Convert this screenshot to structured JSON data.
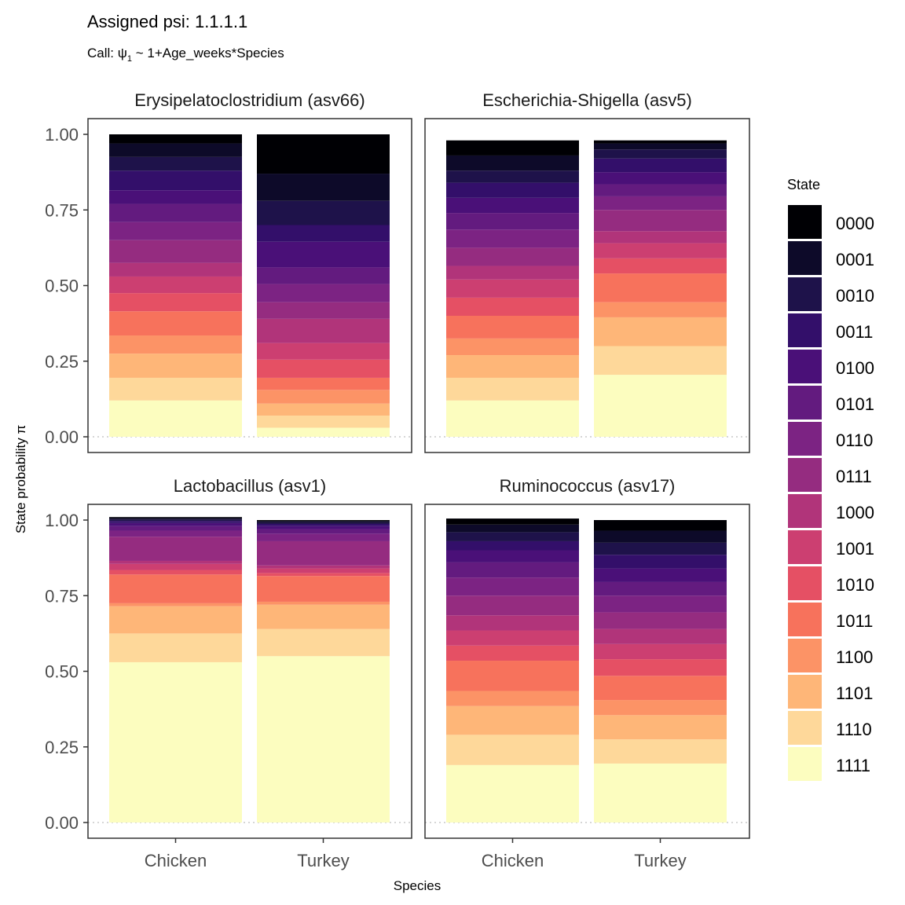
{
  "title": "Assigned psi: 1.1.1.1",
  "subtitle_prefix": "Call: ",
  "subtitle_psi": "ψ",
  "subtitle_psi_sub": "1",
  "subtitle_formula": " ~ 1+Age_weeks*Species",
  "colors": {
    "0000": "#000004",
    "0001": "#0d0a29",
    "0010": "#1e124a",
    "0011": "#330f6a",
    "0100": "#4a1078",
    "0101": "#631b7f",
    "0110": "#7c2383",
    "0111": "#952c80",
    "1000": "#b1347a",
    "1001": "#cc3f71",
    "1010": "#e55064",
    "1011": "#f7725c",
    "1100": "#fc9366",
    "1101": "#feb678",
    "1110": "#fed89a",
    "1111": "#fcfdbf"
  },
  "chart_data": {
    "type": "bar",
    "stacked": true,
    "facets": [
      "Erysipelatoclostridium (asv66)",
      "Escherichia-Shigella (asv5)",
      "Lactobacillus (asv1)",
      "Ruminococcus (asv17)"
    ],
    "categories": [
      "Chicken",
      "Turkey"
    ],
    "xlabel": "Species",
    "ylabel": "State probability π",
    "ylim": [
      0,
      1
    ],
    "yticks": [
      "0.00",
      "0.25",
      "0.50",
      "0.75",
      "1.00"
    ],
    "legend_title": "State",
    "legend_position": "right",
    "states": [
      "0000",
      "0001",
      "0010",
      "0011",
      "0100",
      "0101",
      "0110",
      "0111",
      "1000",
      "1001",
      "1010",
      "1011",
      "1100",
      "1101",
      "1110",
      "1111"
    ],
    "series": [
      {
        "facet": "Erysipelatoclostridium (asv66)",
        "category": "Chicken",
        "values": {
          "0000": 0.03,
          "0001": 0.045,
          "0010": 0.045,
          "0011": 0.065,
          "0100": 0.045,
          "0101": 0.06,
          "0110": 0.06,
          "0111": 0.075,
          "1000": 0.045,
          "1001": 0.055,
          "1010": 0.06,
          "1011": 0.08,
          "1100": 0.06,
          "1101": 0.08,
          "1110": 0.075,
          "1111": 0.12
        }
      },
      {
        "facet": "Erysipelatoclostridium (asv66)",
        "category": "Turkey",
        "values": {
          "0000": 0.13,
          "0001": 0.09,
          "0010": 0.08,
          "0011": 0.055,
          "0100": 0.085,
          "0101": 0.055,
          "0110": 0.06,
          "0111": 0.055,
          "1000": 0.08,
          "1001": 0.055,
          "1010": 0.06,
          "1011": 0.04,
          "1100": 0.045,
          "1101": 0.04,
          "1110": 0.04,
          "1111": 0.03
        }
      },
      {
        "facet": "Escherichia-Shigella (asv5)",
        "category": "Chicken",
        "values": {
          "0000": 0.05,
          "0001": 0.05,
          "0010": 0.04,
          "0011": 0.05,
          "0100": 0.05,
          "0101": 0.055,
          "0110": 0.06,
          "0111": 0.06,
          "1000": 0.045,
          "1001": 0.06,
          "1010": 0.06,
          "1011": 0.075,
          "1100": 0.055,
          "1101": 0.075,
          "1110": 0.075,
          "1111": 0.12
        }
      },
      {
        "facet": "Escherichia-Shigella (asv5)",
        "category": "Turkey",
        "values": {
          "0000": 0.01,
          "0001": 0.02,
          "0010": 0.03,
          "0011": 0.045,
          "0100": 0.04,
          "0101": 0.04,
          "0110": 0.045,
          "0111": 0.07,
          "1000": 0.04,
          "1001": 0.05,
          "1010": 0.05,
          "1011": 0.095,
          "1100": 0.05,
          "1101": 0.095,
          "1110": 0.095,
          "1111": 0.205
        }
      },
      {
        "facet": "Lactobacillus (asv1)",
        "category": "Chicken",
        "values": {
          "0000": 0.003,
          "0001": 0.005,
          "0010": 0.005,
          "0011": 0.007,
          "0100": 0.01,
          "0101": 0.015,
          "0110": 0.02,
          "0111": 0.08,
          "1000": 0.01,
          "1001": 0.02,
          "1010": 0.015,
          "1011": 0.095,
          "1100": 0.01,
          "1101": 0.09,
          "1110": 0.095,
          "1111": 0.53
        }
      },
      {
        "facet": "Lactobacillus (asv1)",
        "category": "Turkey",
        "values": {
          "0000": 0.003,
          "0001": 0.005,
          "0010": 0.005,
          "0011": 0.007,
          "0100": 0.01,
          "0101": 0.015,
          "0110": 0.025,
          "0111": 0.08,
          "1000": 0.01,
          "1001": 0.015,
          "1010": 0.01,
          "1011": 0.085,
          "1100": 0.01,
          "1101": 0.08,
          "1110": 0.09,
          "1111": 0.55
        }
      },
      {
        "facet": "Ruminococcus (asv17)",
        "category": "Chicken",
        "values": {
          "0000": 0.02,
          "0001": 0.025,
          "0010": 0.03,
          "0011": 0.03,
          "0100": 0.04,
          "0101": 0.05,
          "0110": 0.06,
          "0111": 0.065,
          "1000": 0.05,
          "1001": 0.05,
          "1010": 0.05,
          "1011": 0.1,
          "1100": 0.05,
          "1101": 0.095,
          "1110": 0.1,
          "1111": 0.19
        }
      },
      {
        "facet": "Ruminococcus (asv17)",
        "category": "Turkey",
        "values": {
          "0000": 0.035,
          "0001": 0.04,
          "0010": 0.04,
          "0011": 0.045,
          "0100": 0.045,
          "0101": 0.045,
          "0110": 0.055,
          "0111": 0.055,
          "1000": 0.05,
          "1001": 0.05,
          "1010": 0.055,
          "1011": 0.08,
          "1100": 0.05,
          "1101": 0.08,
          "1110": 0.08,
          "1111": 0.195
        }
      }
    ]
  }
}
